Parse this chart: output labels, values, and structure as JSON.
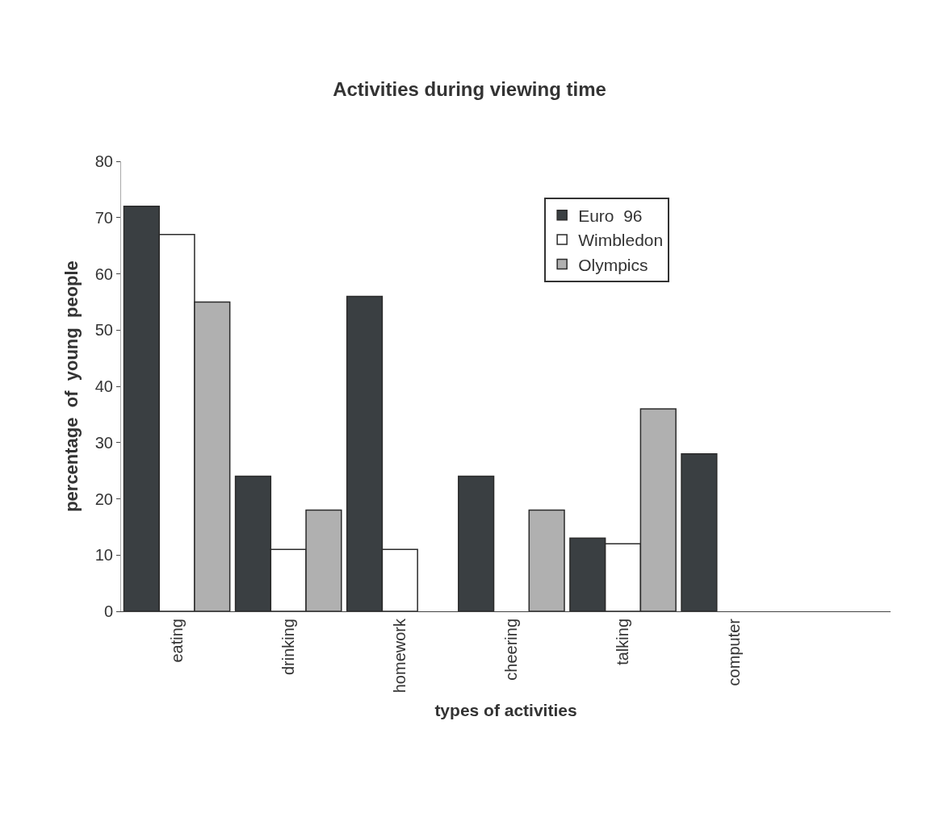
{
  "chart_data": {
    "type": "bar",
    "title": "Activities during viewing time",
    "xlabel": "types of activities",
    "ylabel": "percentage  of  young  people",
    "categories": [
      "eating",
      "drinking",
      "homework",
      "cheering",
      "talking",
      "computer"
    ],
    "series": [
      {
        "name": "Euro  96",
        "color": "#3a3f42",
        "values": [
          72,
          24,
          56,
          24,
          13,
          28
        ]
      },
      {
        "name": "Wimbledon",
        "color": "#ffffff",
        "values": [
          67,
          11,
          11,
          null,
          12,
          null
        ]
      },
      {
        "name": "Olympics",
        "color": "#b0b0b0",
        "values": [
          55,
          18,
          null,
          18,
          36,
          null
        ]
      }
    ],
    "ylim": [
      0,
      80
    ],
    "yticks": [
      0,
      10,
      20,
      30,
      40,
      50,
      60,
      70,
      80
    ],
    "legend": "top right"
  }
}
